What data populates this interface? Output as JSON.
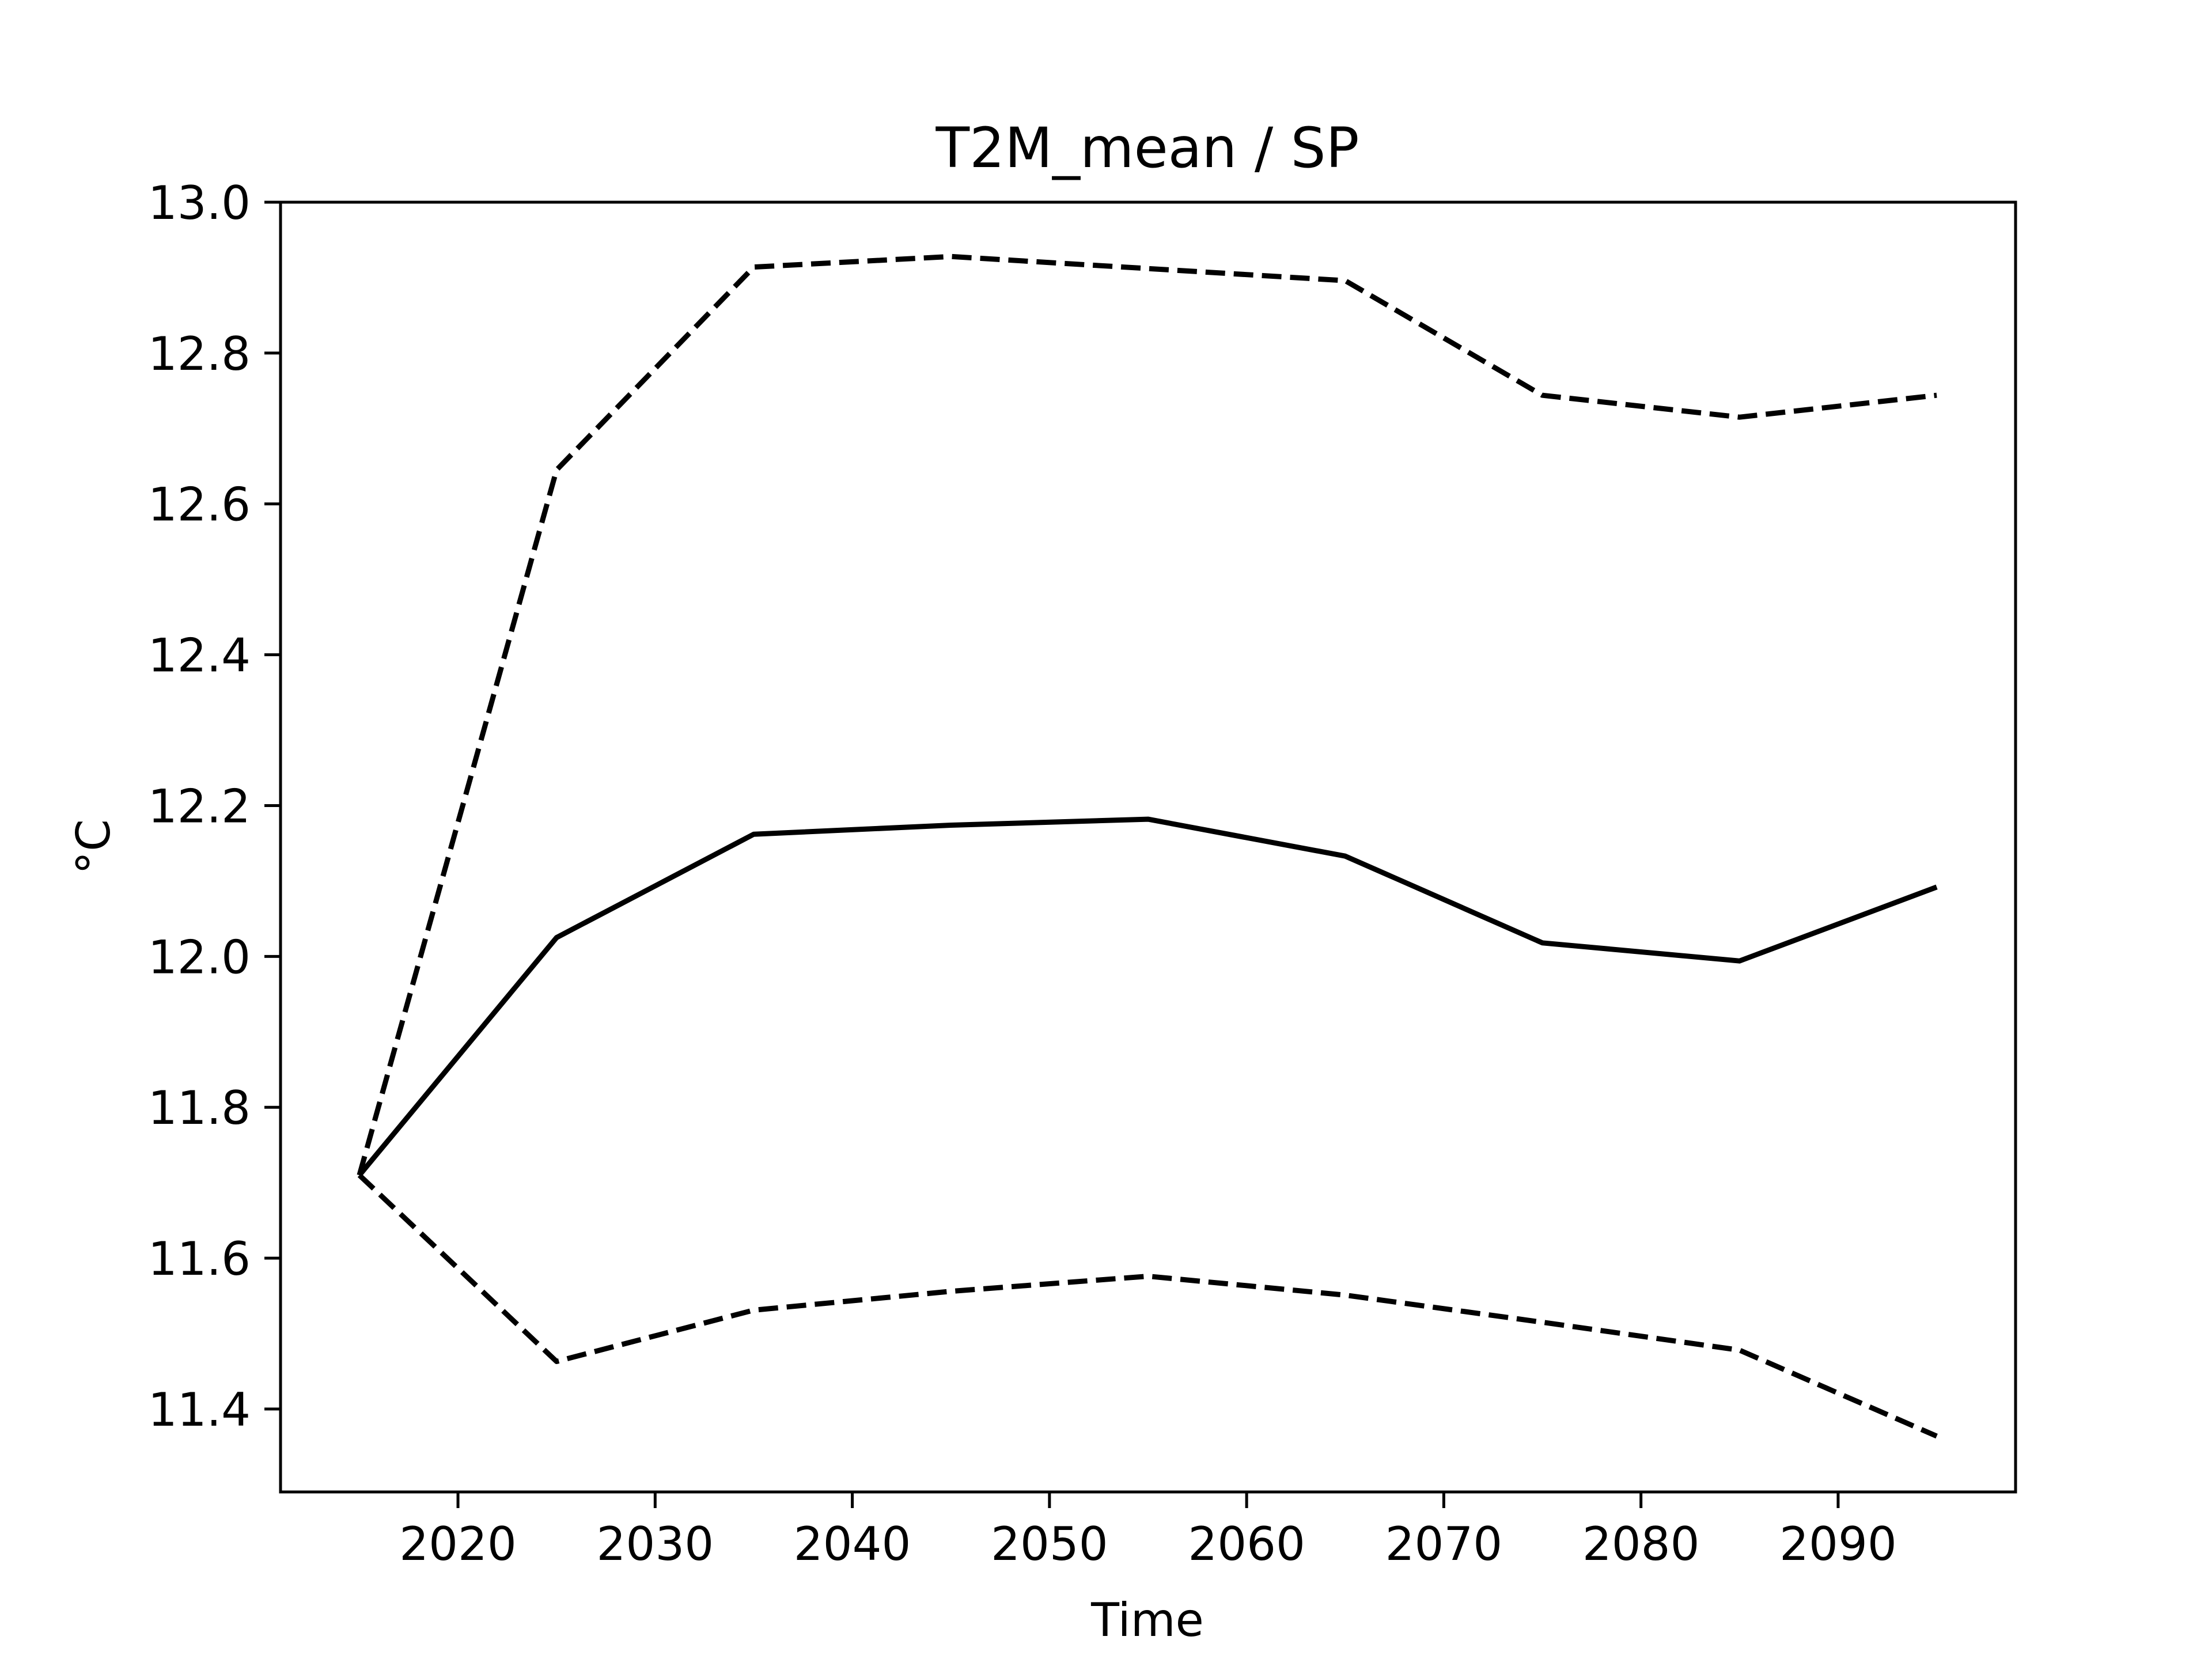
{
  "chart_data": {
    "type": "line",
    "title": "T2M_mean / SP",
    "xlabel": "Time",
    "ylabel": "°C",
    "xlim": [
      2011,
      2099
    ],
    "ylim": [
      11.29,
      13.0
    ],
    "xticks": [
      2020,
      2030,
      2040,
      2050,
      2060,
      2070,
      2080,
      2090
    ],
    "yticks": [
      11.4,
      11.6,
      11.8,
      12.0,
      12.2,
      12.4,
      12.6,
      12.8,
      13.0
    ],
    "ytick_labels": [
      "11.4",
      "11.6",
      "11.8",
      "12.0",
      "12.2",
      "12.4",
      "12.6",
      "12.8",
      "13.0"
    ],
    "grid": false,
    "x": [
      2015,
      2025,
      2035,
      2045,
      2055,
      2065,
      2075,
      2085,
      2095
    ],
    "series": [
      {
        "style": "solid",
        "color": "#000000",
        "values": [
          11.71,
          12.025,
          12.162,
          12.174,
          12.182,
          12.133,
          12.018,
          11.994,
          12.092
        ]
      },
      {
        "style": "dashed",
        "color": "#000000",
        "values": [
          11.71,
          12.645,
          12.914,
          12.928,
          12.912,
          12.896,
          12.744,
          12.715,
          12.744
        ]
      },
      {
        "style": "dashed",
        "color": "#000000",
        "values": [
          11.71,
          11.463,
          11.531,
          11.556,
          11.576,
          11.551,
          11.515,
          11.478,
          11.364
        ]
      }
    ]
  }
}
